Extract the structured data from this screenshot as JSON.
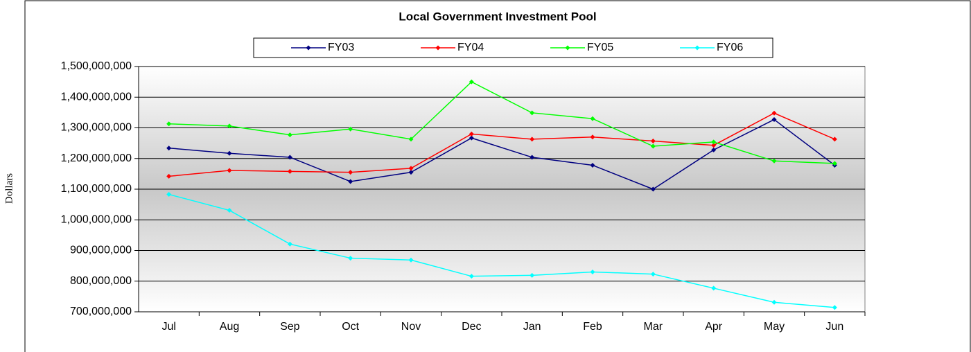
{
  "chart_data": {
    "type": "line",
    "title": "Local Government Investment Pool",
    "y_label": "Dollars",
    "categories": [
      "Jul",
      "Aug",
      "Sep",
      "Oct",
      "Nov",
      "Dec",
      "Jan",
      "Feb",
      "Mar",
      "Apr",
      "May",
      "Jun"
    ],
    "series": [
      {
        "name": "FY03",
        "color": "#000080",
        "values": [
          1234000000,
          1217000000,
          1204000000,
          1125000000,
          1155000000,
          1267000000,
          1204000000,
          1178000000,
          1100000000,
          1228000000,
          1327000000,
          1178000000
        ]
      },
      {
        "name": "FY04",
        "color": "#ff0000",
        "values": [
          1142000000,
          1161000000,
          1158000000,
          1155000000,
          1168000000,
          1280000000,
          1263000000,
          1270000000,
          1257000000,
          1243000000,
          1348000000,
          1263000000
        ]
      },
      {
        "name": "FY05",
        "color": "#00ff00",
        "values": [
          1313000000,
          1306000000,
          1277000000,
          1296000000,
          1263000000,
          1450000000,
          1349000000,
          1330000000,
          1240000000,
          1254000000,
          1192000000,
          1184000000
        ]
      },
      {
        "name": "FY06",
        "color": "#00ffff",
        "values": [
          1083000000,
          1031000000,
          921000000,
          875000000,
          869000000,
          816000000,
          819000000,
          830000000,
          823000000,
          777000000,
          731000000,
          714000000
        ]
      }
    ],
    "ylim": [
      700000000,
      1500000000
    ],
    "yticks": [
      {
        "value": 700000000,
        "label": "700,000,000"
      },
      {
        "value": 800000000,
        "label": "800,000,000"
      },
      {
        "value": 900000000,
        "label": "900,000,000"
      },
      {
        "value": 1000000000,
        "label": "1,000,000,000"
      },
      {
        "value": 1100000000,
        "label": "1,100,000,000"
      },
      {
        "value": 1200000000,
        "label": "1,200,000,000"
      },
      {
        "value": 1300000000,
        "label": "1,300,000,000"
      },
      {
        "value": 1400000000,
        "label": "1,400,000,000"
      },
      {
        "value": 1500000000,
        "label": "1,500,000,000"
      }
    ],
    "grid": true,
    "legend": "top"
  }
}
